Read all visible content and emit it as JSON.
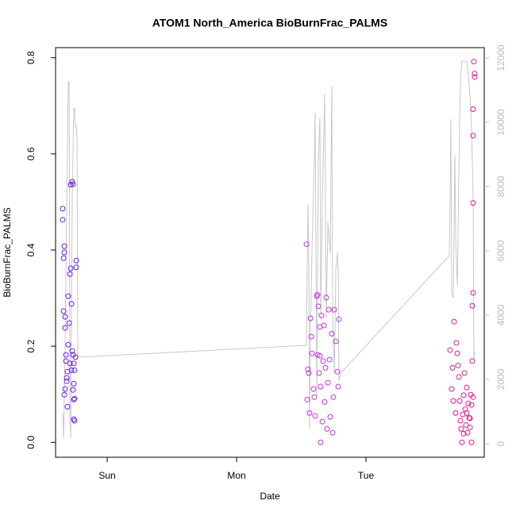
{
  "chart_data": {
    "type": "scatter",
    "title": "ATOM1 North_America BioBurnFrac_PALMS",
    "xlabel": "Date",
    "ylabel": "BioBurnFrac_PALMS",
    "xlim": [
      -0.399,
      2.914
    ],
    "xticks": [
      {
        "value": 0,
        "label": "Sun"
      },
      {
        "value": 1,
        "label": "Mon"
      },
      {
        "value": 2,
        "label": "Tue"
      }
    ],
    "ylim": [
      -0.031,
      0.821
    ],
    "yticks": [
      {
        "value": 0,
        "label": "0.0"
      },
      0.2,
      0.4,
      0.6,
      0.8
    ],
    "y2lim": [
      -420,
      12320
    ],
    "y2ticks": [
      0,
      2000,
      4000,
      6000,
      8000,
      10000,
      12000
    ],
    "series": [
      {
        "color": "#6a1fe8",
        "x": [
          -0.344,
          -0.344,
          -0.331,
          -0.331,
          -0.337,
          -0.337,
          -0.325,
          -0.325,
          -0.319,
          -0.319,
          -0.313,
          -0.331,
          -0.307,
          -0.301,
          -0.294,
          -0.301,
          -0.288,
          -0.282,
          -0.282,
          -0.27,
          -0.264,
          -0.276,
          -0.27,
          -0.264,
          -0.258,
          -0.258,
          -0.264,
          -0.258,
          -0.252,
          -0.258,
          -0.252,
          -0.239,
          -0.239,
          -0.245,
          -0.276,
          -0.252,
          -0.307,
          -0.288,
          -0.313,
          -0.325
        ],
        "values": [
          0.486,
          0.463,
          0.408,
          0.395,
          0.383,
          0.273,
          0.261,
          0.238,
          0.182,
          0.169,
          0.127,
          0.099,
          0.074,
          0.203,
          0.248,
          0.304,
          0.35,
          0.362,
          0.536,
          0.542,
          0.537,
          0.288,
          0.19,
          0.182,
          0.164,
          0.122,
          0.109,
          0.089,
          0.091,
          0.048,
          0.045,
          0.378,
          0.364,
          0.177,
          0.15,
          0.15,
          0.147,
          0.164,
          0.134,
          0.111
        ]
      },
      {
        "color": "#c431e0",
        "x": [
          1.54,
          1.552,
          1.558,
          1.546,
          1.564,
          1.571,
          1.577,
          1.583,
          1.595,
          1.607,
          1.62,
          1.626,
          1.632,
          1.626,
          1.638,
          1.644,
          1.65,
          1.656,
          1.663,
          1.669,
          1.675,
          1.681,
          1.693,
          1.699,
          1.706,
          1.712,
          1.718,
          1.724,
          1.736,
          1.742,
          1.748,
          1.755,
          1.767,
          1.779,
          1.785,
          1.791,
          1.65,
          1.601,
          1.687,
          1.644
        ],
        "values": [
          0.412,
          0.152,
          0.144,
          0.089,
          0.061,
          0.258,
          0.22,
          0.185,
          0.111,
          0.055,
          0.304,
          0.307,
          0.283,
          0.182,
          0.144,
          0.24,
          0.116,
          0.264,
          0.043,
          0.169,
          0.243,
          0.084,
          0.301,
          0.028,
          0.124,
          0.276,
          0.172,
          0.053,
          0.226,
          0.02,
          0.094,
          0.276,
          0.21,
          0.147,
          0.116,
          0.256,
          0.0,
          0.094,
          0.155,
          0.18
        ]
      },
      {
        "color": "#e8178f",
        "x": [
          2.65,
          2.681,
          2.669,
          2.663,
          2.675,
          2.693,
          2.699,
          2.706,
          2.712,
          2.718,
          2.724,
          2.73,
          2.736,
          2.742,
          2.748,
          2.755,
          2.761,
          2.767,
          2.773,
          2.779,
          2.785,
          2.791,
          2.798,
          2.804,
          2.81,
          2.816,
          2.822,
          2.828,
          2.822,
          2.828,
          2.828,
          2.828,
          2.834,
          2.84,
          2.84,
          2.828,
          2.816,
          2.804,
          2.779,
          2.755
        ],
        "values": [
          0.192,
          0.251,
          0.155,
          0.111,
          0.086,
          0.061,
          0.207,
          0.185,
          0.16,
          0.136,
          0.086,
          0.045,
          0.028,
          0.0,
          0.058,
          0.098,
          0.144,
          0.069,
          0.036,
          0.114,
          0.02,
          0.081,
          0.051,
          0.031,
          0.099,
          0.078,
          0.284,
          0.094,
          0.169,
          0.693,
          0.638,
          0.498,
          0.792,
          0.767,
          0.76,
          0.311,
          0.0,
          0.05,
          0.061,
          0.018
        ]
      }
    ],
    "line": {
      "color": "#c8c8c8",
      "axis": "y2",
      "x": [
        -0.344,
        -0.337,
        -0.325,
        -0.313,
        -0.301,
        -0.294,
        -0.288,
        -0.282,
        -0.276,
        -0.27,
        -0.258,
        -0.252,
        -0.245,
        -0.239,
        -0.233,
        -0.227,
        1.54,
        1.546,
        1.552,
        1.558,
        1.564,
        1.571,
        1.583,
        1.601,
        1.607,
        1.613,
        1.62,
        1.632,
        1.644,
        1.65,
        1.663,
        1.681,
        1.693,
        1.706,
        1.724,
        1.736,
        1.742,
        1.755,
        1.767,
        1.779,
        1.785,
        1.791,
        1.804,
        2.644,
        2.65,
        2.656,
        2.663,
        2.675,
        2.687,
        2.693,
        2.706,
        2.718,
        2.73,
        2.742,
        2.767,
        2.779,
        2.791,
        2.804,
        2.816,
        2.828,
        2.834,
        2.84
      ],
      "values": [
        963,
        173,
        3185,
        7383,
        11259,
        11259,
        716,
        173,
        3926,
        7630,
        10444,
        10444,
        9852,
        9852,
        9481,
        2691,
        3062,
        5407,
        7457,
        5654,
        469,
        3432,
        6148,
        8864,
        10296,
        6395,
        1457,
        8864,
        10148,
        3926,
        7630,
        10889,
        3926,
        6889,
        5901,
        11136,
        3926,
        2198,
        5407,
        5951,
        5407,
        1951,
        2198,
        5852,
        7630,
        10099,
        4667,
        4543,
        8988,
        6395,
        4914,
        8617,
        11333,
        11901,
        11901,
        11901,
        11457,
        10840,
        9852,
        7630,
        2568,
        2864
      ]
    }
  }
}
